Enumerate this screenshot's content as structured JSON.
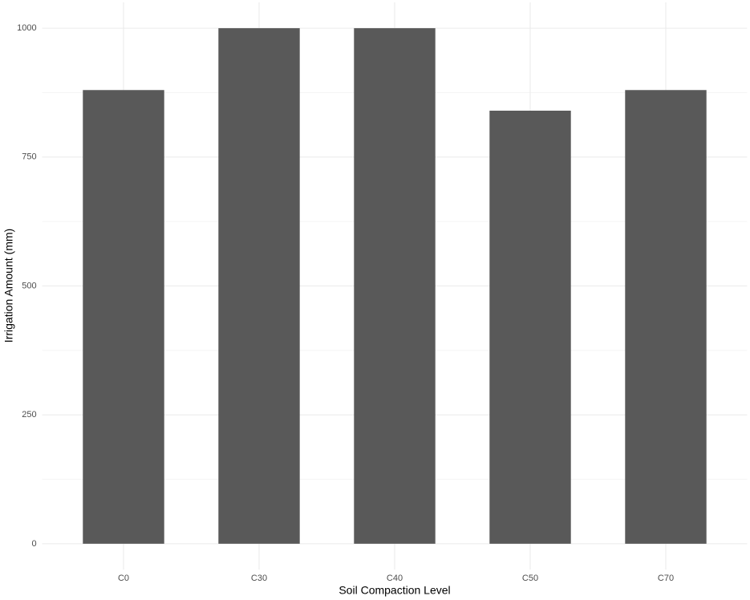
{
  "chart_data": {
    "type": "bar",
    "x_label": "Soil Compaction Level",
    "y_label": "Irrigation Amount (mm)",
    "categories": [
      "C0",
      "C30",
      "C40",
      "C50",
      "C70"
    ],
    "values": [
      880,
      1000,
      1000,
      840,
      880
    ],
    "color": "#595959",
    "ylim": [
      -50,
      1050
    ],
    "yticks": [
      0,
      250,
      500,
      750,
      1000
    ],
    "minor_yticks": [
      125,
      375,
      625,
      875
    ],
    "grid": true
  }
}
